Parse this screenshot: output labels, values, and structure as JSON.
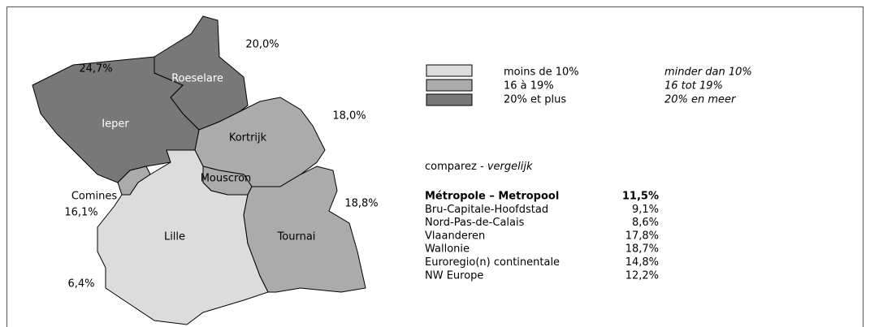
{
  "regions": [
    {
      "name": "Roeselare",
      "value": "20,0%"
    },
    {
      "name": "Ieper",
      "value": "24,7%"
    },
    {
      "name": "Kortrijk",
      "value": "18,0%"
    },
    {
      "name": "Mouscron"
    },
    {
      "name": "Comines",
      "value": "16,1%"
    },
    {
      "name": "Lille",
      "value": "6,4%"
    },
    {
      "name": "Tournai",
      "value": "18,8%"
    }
  ],
  "legend": [
    {
      "fr": "moins de 10%",
      "nl": "minder dan 10%"
    },
    {
      "fr": "16 à 19%",
      "nl": "16 tot 19%"
    },
    {
      "fr": "20% et plus",
      "nl": "20% en meer"
    }
  ],
  "compare": {
    "title_fr": "comparez -",
    "title_nl": "vergelijk",
    "rows": [
      [
        "Métropole – Metropool",
        "11,5%"
      ],
      [
        "Bru-Capitale-Hoofdstad",
        "9,1%"
      ],
      [
        "Nord-Pas-de-Calais",
        "8,6%"
      ],
      [
        "Vlaanderen",
        "17,8%"
      ],
      [
        "Wallonie",
        "18,7%"
      ],
      [
        "Euroregio(n) continentale",
        "14,8%"
      ],
      [
        "NW Europe",
        "12,2%"
      ]
    ]
  }
}
